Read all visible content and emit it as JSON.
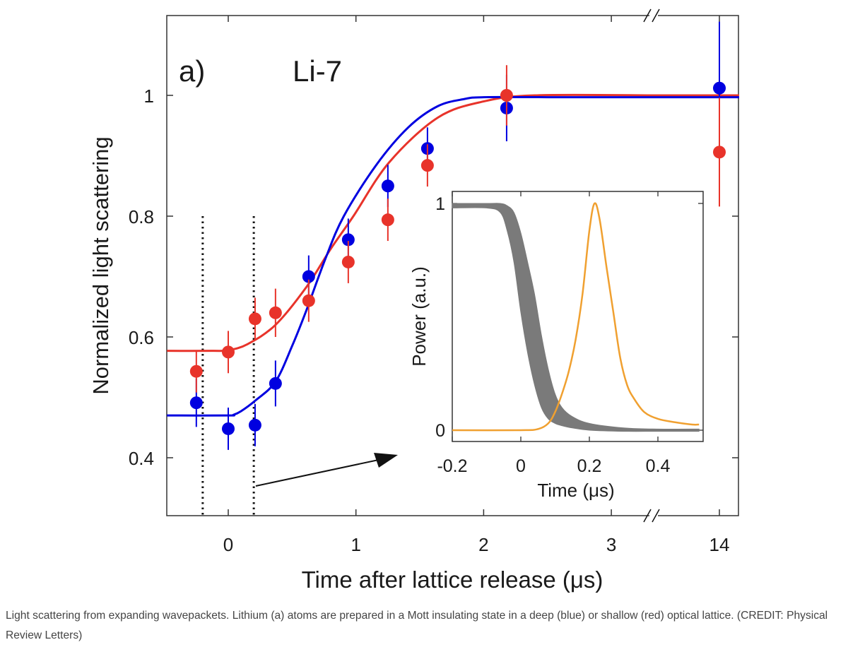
{
  "chart_data": [
    {
      "type": "scatter",
      "panel_label": "a)",
      "annotation": "Li-7",
      "xlabel": "Time after lattice release (μs)",
      "ylabel": "Normalized light scattering",
      "x_tick_labels": [
        "0",
        "1",
        "2",
        "3",
        "14"
      ],
      "x_ticks": [
        0,
        1,
        2,
        3,
        14
      ],
      "y_tick_labels": [
        "0.4",
        "0.6",
        "0.8",
        "1"
      ],
      "y_ticks": [
        0.4,
        0.6,
        0.8,
        1.0
      ],
      "xlim": [
        -0.48,
        14.15
      ],
      "x_axis_break": [
        3.33,
        13.5
      ],
      "ylim": [
        0.303,
        1.132
      ],
      "grid": false,
      "legend": "none",
      "vertical_dotted_lines": [
        -0.2,
        0.2
      ],
      "vertical_dotted_lines_top": 0.8,
      "series": [
        {
          "color": "#0000e0",
          "points": {
            "x": [
              -0.25,
              0,
              0.21,
              0.37,
              0.63,
              0.94,
              1.25,
              1.56,
              2.18,
              14
            ],
            "y": [
              0.491,
              0.448,
              0.454,
              0.523,
              0.7,
              0.761,
              0.85,
              0.912,
              0.979,
              1.012
            ],
            "err": [
              0.04,
              0.035,
              0.035,
              0.038,
              0.035,
              0.035,
              0.035,
              0.035,
              0.055,
              0.11
            ]
          },
          "fit": {
            "x": [
              -0.48,
              0,
              0.04,
              0.1,
              0.214,
              0.37,
              0.5,
              0.61,
              0.76,
              0.905,
              1.16,
              1.41,
              1.64,
              1.85,
              2.0,
              2.5,
              3.33,
              13.5,
              14.15
            ],
            "y": [
              0.47,
              0.47,
              0.471,
              0.477,
              0.495,
              0.526,
              0.585,
              0.643,
              0.729,
              0.8,
              0.885,
              0.947,
              0.982,
              0.994,
              0.997,
              0.997,
              0.997,
              0.997,
              0.997
            ]
          }
        },
        {
          "color": "#e8332a",
          "points": {
            "x": [
              -0.25,
              0,
              0.21,
              0.37,
              0.63,
              0.94,
              1.25,
              1.56,
              2.18,
              14
            ],
            "y": [
              0.543,
              0.575,
              0.63,
              0.64,
              0.66,
              0.724,
              0.794,
              0.884,
              1.0,
              0.906
            ],
            "err": [
              0.035,
              0.035,
              0.035,
              0.04,
              0.035,
              0.035,
              0.035,
              0.035,
              0.05,
              0.09
            ]
          },
          "fit": {
            "x": [
              -0.48,
              -0.13,
              0,
              0.15,
              0.37,
              0.61,
              0.8,
              0.98,
              1.26,
              1.64,
              2.0,
              2.4,
              3.33,
              13.5,
              14.15
            ],
            "y": [
              0.577,
              0.577,
              0.578,
              0.588,
              0.62,
              0.682,
              0.745,
              0.8,
              0.889,
              0.963,
              0.99,
              1.0,
              1.0,
              1.0,
              1.0
            ]
          }
        }
      ]
    },
    {
      "type": "line",
      "role": "inset",
      "xlabel": "Time (μs)",
      "ylabel": "Power (a.u.)",
      "x_tick_labels": [
        "-0.2",
        "0",
        "0.2",
        "0.4"
      ],
      "x_ticks": [
        -0.2,
        0,
        0.2,
        0.4
      ],
      "y_tick_labels": [
        "0",
        "1"
      ],
      "y_ticks": [
        0,
        1
      ],
      "xlim": [
        -0.2,
        0.532
      ],
      "ylim": [
        -0.05,
        1.053
      ],
      "grid": false,
      "series": [
        {
          "color": "#7a7a7a",
          "kind": "band",
          "x": [
            -0.2,
            -0.1,
            -0.06,
            -0.04,
            -0.02,
            0,
            0.02,
            0.04,
            0.06,
            0.08,
            0.1,
            0.12,
            0.15,
            0.2,
            0.3,
            0.4,
            0.52
          ],
          "upper": [
            1.0,
            1.0,
            1.0,
            0.99,
            0.96,
            0.87,
            0.74,
            0.6,
            0.42,
            0.27,
            0.16,
            0.1,
            0.06,
            0.03,
            0.01,
            0.005,
            0.005
          ],
          "lower": [
            0.98,
            0.98,
            0.96,
            0.88,
            0.74,
            0.52,
            0.34,
            0.2,
            0.1,
            0.05,
            0.03,
            0.02,
            0.01,
            0.0,
            -0.005,
            -0.005,
            -0.005
          ]
        },
        {
          "color": "#f0a030",
          "kind": "line",
          "x": [
            -0.2,
            0,
            0.05,
            0.08,
            0.1,
            0.12,
            0.14,
            0.16,
            0.18,
            0.2,
            0.215,
            0.23,
            0.25,
            0.27,
            0.29,
            0.31,
            0.33,
            0.36,
            0.4,
            0.45,
            0.5,
            0.52
          ],
          "y": [
            0,
            0,
            0.005,
            0.03,
            0.08,
            0.16,
            0.26,
            0.4,
            0.6,
            0.88,
            1.0,
            0.93,
            0.72,
            0.52,
            0.32,
            0.2,
            0.14,
            0.08,
            0.05,
            0.035,
            0.025,
            0.025
          ]
        }
      ]
    }
  ],
  "caption": "Light scattering from expanding wavepackets. Lithium (a) atoms are prepared in a Mott insulating state in a deep (blue) or shallow (red) optical lattice. (CREDIT: Physical Review Letters)"
}
